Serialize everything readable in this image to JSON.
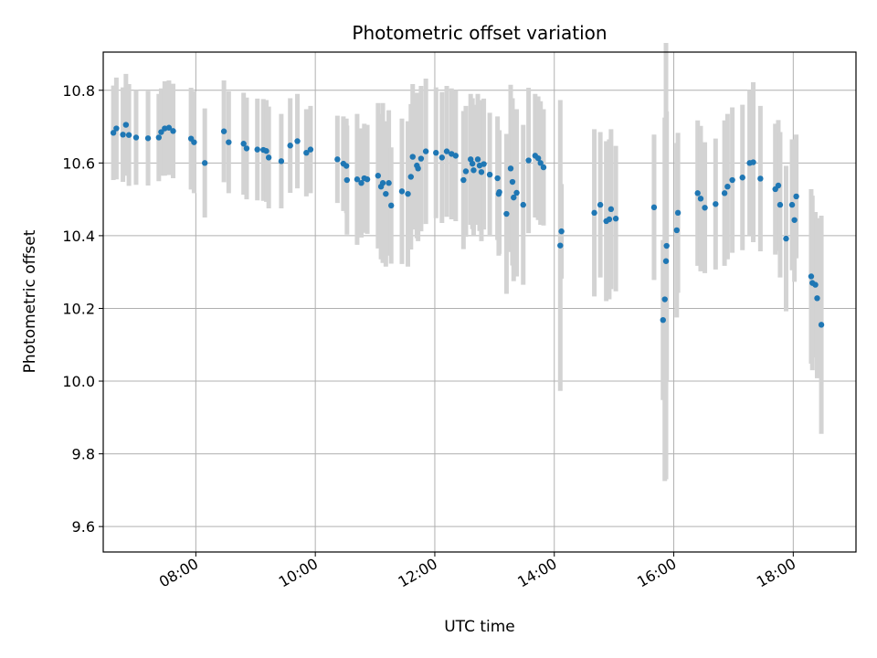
{
  "chart_data": {
    "type": "scatter",
    "title": "Photometric offset variation",
    "xlabel": "UTC time",
    "ylabel": "Photometric offset",
    "x_unit": "hours (UTC)",
    "xlim": [
      6.45,
      19.05
    ],
    "ylim": [
      9.53,
      10.905
    ],
    "xticks": [
      {
        "value": 8,
        "label": "08:00"
      },
      {
        "value": 10,
        "label": "10:00"
      },
      {
        "value": 12,
        "label": "12:00"
      },
      {
        "value": 14,
        "label": "14:00"
      },
      {
        "value": 16,
        "label": "16:00"
      },
      {
        "value": 18,
        "label": "18:00"
      }
    ],
    "yticks": [
      {
        "value": 9.6,
        "label": "9.6"
      },
      {
        "value": 9.8,
        "label": "9.8"
      },
      {
        "value": 10.0,
        "label": "10.0"
      },
      {
        "value": 10.2,
        "label": "10.2"
      },
      {
        "value": 10.4,
        "label": "10.4"
      },
      {
        "value": 10.6,
        "label": "10.6"
      },
      {
        "value": 10.8,
        "label": "10.8"
      }
    ],
    "grid": true,
    "colors": {
      "points": "#1f77b4",
      "errorbars": "#d3d3d3",
      "grid": "#b0b0b0"
    },
    "series": [
      {
        "points": [
          [
            6.62,
            10.683,
            0.13
          ],
          [
            6.67,
            10.695,
            0.14
          ],
          [
            6.78,
            10.678,
            0.13
          ],
          [
            6.83,
            10.705,
            0.14
          ],
          [
            6.88,
            10.677,
            0.14
          ],
          [
            7.0,
            10.67,
            0.13
          ],
          [
            7.2,
            10.668,
            0.13
          ],
          [
            7.38,
            10.67,
            0.12
          ],
          [
            7.42,
            10.685,
            0.12
          ],
          [
            7.48,
            10.695,
            0.13
          ],
          [
            7.55,
            10.697,
            0.13
          ],
          [
            7.62,
            10.688,
            0.13
          ],
          [
            7.92,
            10.667,
            0.14
          ],
          [
            7.97,
            10.657,
            0.14
          ],
          [
            8.15,
            10.6,
            0.15
          ],
          [
            8.47,
            10.687,
            0.14
          ],
          [
            8.55,
            10.657,
            0.14
          ],
          [
            8.8,
            10.653,
            0.14
          ],
          [
            8.85,
            10.64,
            0.14
          ],
          [
            9.03,
            10.637,
            0.14
          ],
          [
            9.13,
            10.636,
            0.14
          ],
          [
            9.18,
            10.633,
            0.14
          ],
          [
            9.22,
            10.615,
            0.14
          ],
          [
            9.43,
            10.605,
            0.13
          ],
          [
            9.58,
            10.648,
            0.13
          ],
          [
            9.7,
            10.66,
            0.13
          ],
          [
            9.85,
            10.628,
            0.12
          ],
          [
            9.92,
            10.637,
            0.12
          ],
          [
            10.37,
            10.61,
            0.12
          ],
          [
            10.47,
            10.598,
            0.13
          ],
          [
            10.52,
            10.592,
            0.13
          ],
          [
            10.53,
            10.553,
            0.15
          ],
          [
            10.7,
            10.555,
            0.18
          ],
          [
            10.77,
            10.545,
            0.15
          ],
          [
            10.82,
            10.558,
            0.15
          ],
          [
            10.87,
            10.555,
            0.15
          ],
          [
            11.05,
            10.565,
            0.2
          ],
          [
            11.1,
            10.535,
            0.2
          ],
          [
            11.13,
            10.545,
            0.22
          ],
          [
            11.18,
            10.515,
            0.2
          ],
          [
            11.23,
            10.545,
            0.2
          ],
          [
            11.27,
            10.483,
            0.16
          ],
          [
            11.45,
            10.522,
            0.2
          ],
          [
            11.55,
            10.515,
            0.2
          ],
          [
            11.6,
            10.562,
            0.2
          ],
          [
            11.63,
            10.617,
            0.2
          ],
          [
            11.7,
            10.593,
            0.2
          ],
          [
            11.72,
            10.585,
            0.2
          ],
          [
            11.77,
            10.612,
            0.2
          ],
          [
            11.85,
            10.632,
            0.2
          ],
          [
            12.02,
            10.628,
            0.18
          ],
          [
            12.12,
            10.615,
            0.18
          ],
          [
            12.2,
            10.632,
            0.18
          ],
          [
            12.28,
            10.625,
            0.18
          ],
          [
            12.35,
            10.62,
            0.18
          ],
          [
            12.48,
            10.553,
            0.19
          ],
          [
            12.52,
            10.577,
            0.18
          ],
          [
            12.6,
            10.61,
            0.18
          ],
          [
            12.63,
            10.598,
            0.18
          ],
          [
            12.65,
            10.58,
            0.18
          ],
          [
            12.72,
            10.61,
            0.18
          ],
          [
            12.75,
            10.593,
            0.18
          ],
          [
            12.78,
            10.575,
            0.19
          ],
          [
            12.82,
            10.597,
            0.18
          ],
          [
            12.92,
            10.568,
            0.17
          ],
          [
            13.05,
            10.558,
            0.17
          ],
          [
            13.08,
            10.52,
            0.17
          ],
          [
            13.07,
            10.515,
            0.17
          ],
          [
            13.2,
            10.46,
            0.22
          ],
          [
            13.27,
            10.585,
            0.23
          ],
          [
            13.3,
            10.548,
            0.23
          ],
          [
            13.32,
            10.505,
            0.23
          ],
          [
            13.37,
            10.518,
            0.23
          ],
          [
            13.48,
            10.485,
            0.22
          ],
          [
            13.57,
            10.607,
            0.2
          ],
          [
            13.68,
            10.62,
            0.17
          ],
          [
            13.73,
            10.613,
            0.17
          ],
          [
            13.77,
            10.6,
            0.17
          ],
          [
            13.82,
            10.588,
            0.16
          ],
          [
            14.12,
            10.412,
            0.13
          ],
          [
            14.1,
            10.373,
            0.4
          ],
          [
            14.67,
            10.463,
            0.23
          ],
          [
            14.77,
            10.485,
            0.2
          ],
          [
            14.87,
            10.44,
            0.22
          ],
          [
            14.92,
            10.445,
            0.22
          ],
          [
            14.95,
            10.473,
            0.22
          ],
          [
            15.03,
            10.447,
            0.2
          ],
          [
            15.67,
            10.478,
            0.2
          ],
          [
            15.82,
            10.168,
            0.22
          ],
          [
            15.85,
            10.225,
            0.5
          ],
          [
            15.87,
            10.33,
            0.6
          ],
          [
            15.88,
            10.372,
            0.37
          ],
          [
            16.05,
            10.415,
            0.24
          ],
          [
            16.07,
            10.463,
            0.22
          ],
          [
            16.4,
            10.517,
            0.2
          ],
          [
            16.45,
            10.502,
            0.2
          ],
          [
            16.52,
            10.477,
            0.18
          ],
          [
            16.7,
            10.487,
            0.18
          ],
          [
            16.85,
            10.517,
            0.2
          ],
          [
            16.9,
            10.535,
            0.2
          ],
          [
            16.98,
            10.553,
            0.2
          ],
          [
            17.15,
            10.56,
            0.2
          ],
          [
            17.27,
            10.6,
            0.2
          ],
          [
            17.33,
            10.602,
            0.22
          ],
          [
            17.45,
            10.557,
            0.2
          ],
          [
            17.7,
            10.528,
            0.18
          ],
          [
            17.75,
            10.538,
            0.18
          ],
          [
            17.78,
            10.485,
            0.2
          ],
          [
            17.88,
            10.392,
            0.2
          ],
          [
            17.98,
            10.485,
            0.18
          ],
          [
            18.02,
            10.443,
            0.17
          ],
          [
            18.05,
            10.508,
            0.17
          ],
          [
            18.3,
            10.288,
            0.24
          ],
          [
            18.32,
            10.27,
            0.24
          ],
          [
            18.37,
            10.265,
            0.2
          ],
          [
            18.4,
            10.228,
            0.22
          ],
          [
            18.47,
            10.155,
            0.3
          ]
        ]
      }
    ]
  }
}
